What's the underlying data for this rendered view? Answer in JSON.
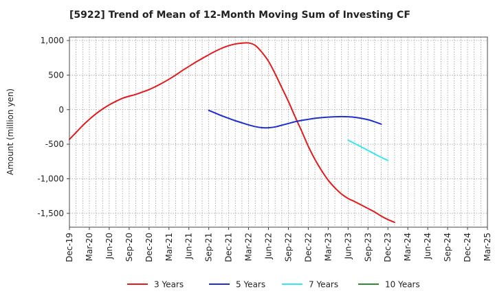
{
  "chart_data": {
    "type": "line",
    "title": "[5922]  Trend of Mean of 12-Month Moving Sum of Investing CF",
    "xlabel": "",
    "ylabel": "Amount (million yen)",
    "ylim": [
      -1700,
      1050
    ],
    "yticks": [
      1000,
      500,
      0,
      -500,
      -1000,
      -1500
    ],
    "ytick_labels": [
      "1,000",
      "500",
      "0",
      "-500",
      "-1,000",
      "-1,500"
    ],
    "xticks": [
      "Dec-19",
      "Mar-20",
      "Jun-20",
      "Sep-20",
      "Dec-20",
      "Mar-21",
      "Jun-21",
      "Sep-21",
      "Dec-21",
      "Mar-22",
      "Jun-22",
      "Sep-22",
      "Dec-22",
      "Mar-23",
      "Jun-23",
      "Sep-23",
      "Dec-23",
      "Mar-24",
      "Jun-24",
      "Sep-24",
      "Dec-24",
      "Mar-25"
    ],
    "grid": true,
    "series": [
      {
        "name": "3 Years",
        "color": "#e31a1c",
        "start_index": 0,
        "values": [
          -430,
          -330,
          -230,
          -140,
          -60,
          10,
          70,
          120,
          165,
          195,
          220,
          255,
          290,
          335,
          385,
          440,
          500,
          565,
          625,
          685,
          740,
          795,
          845,
          890,
          925,
          950,
          962,
          965,
          930,
          830,
          700,
          520,
          320,
          120,
          -100,
          -310,
          -530,
          -720,
          -880,
          -1020,
          -1130,
          -1220,
          -1285,
          -1330,
          -1380,
          -1430,
          -1480,
          -1540,
          -1590,
          -1630
        ]
      },
      {
        "name": "5 Years",
        "color": "#1c2fcc",
        "start_index": 21,
        "values": [
          -10,
          -50,
          -90,
          -125,
          -160,
          -190,
          -220,
          -245,
          -260,
          -262,
          -250,
          -225,
          -200,
          -175,
          -155,
          -140,
          -125,
          -115,
          -108,
          -103,
          -100,
          -103,
          -110,
          -125,
          -145,
          -175,
          -210
        ]
      },
      {
        "name": "7 Years",
        "color": "#33e8ee",
        "start_index": 42,
        "values": [
          -440,
          -490,
          -540,
          -590,
          -640,
          -690,
          -735
        ]
      },
      {
        "name": "10 Years",
        "color": "#2e8b2e",
        "start_index": 0,
        "values": []
      }
    ]
  }
}
